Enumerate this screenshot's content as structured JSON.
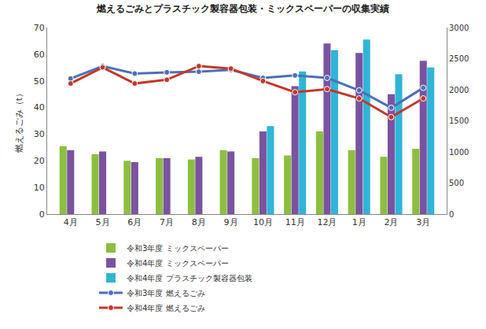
{
  "chart_data": {
    "type": "bar",
    "title": "燃えるごみとプラスチック製容器包装・ミックスペーパーの収集実績",
    "y_label": "燃えるごみ（t）",
    "categories": [
      "4月",
      "5月",
      "6月",
      "7月",
      "8月",
      "9月",
      "10月",
      "11月",
      "12月",
      "1月",
      "2月",
      "3月"
    ],
    "series": [
      {
        "name": "令和3年度 ミックスペーパー",
        "type": "bar",
        "axis": "y",
        "color": "#8cbf3f",
        "values": [
          25.5,
          22.5,
          20,
          21,
          20.5,
          24,
          21,
          22,
          31,
          24,
          21.5,
          24.5
        ]
      },
      {
        "name": "令和4年度 ミックスペーパー",
        "type": "bar",
        "axis": "y",
        "color": "#7b52a0",
        "values": [
          24,
          23.5,
          19.5,
          21,
          21.5,
          23.5,
          31,
          48,
          64,
          60.5,
          45,
          57.5
        ]
      },
      {
        "name": "令和4年度 プラスチック製容器包装",
        "type": "bar",
        "axis": "y",
        "color": "#2fb5d6",
        "values": [
          null,
          null,
          null,
          null,
          null,
          null,
          33,
          53.5,
          61.5,
          65.5,
          52.5,
          55
        ]
      },
      {
        "name": "令和3年度 燃えるごみ",
        "type": "line",
        "axis": "y2",
        "color": "#4f6fb5",
        "marker": "circle",
        "line_style": "solid",
        "values": [
          2180,
          2380,
          2260,
          2280,
          2290,
          2320,
          2190,
          2230,
          2190,
          1990,
          1710,
          2030
        ]
      },
      {
        "name": "令和4年度 燃えるごみ",
        "type": "line",
        "axis": "y2",
        "color": "#c0392b",
        "marker": "circle",
        "line_style": "solid",
        "values": [
          2100,
          2360,
          2100,
          2160,
          2380,
          2340,
          2140,
          1960,
          2010,
          1860,
          1560,
          1860
        ]
      }
    ],
    "ylim": [
      0,
      70
    ],
    "yticks": [
      0,
      10,
      20,
      30,
      40,
      50,
      60,
      70
    ],
    "y2lim": [
      0,
      3000
    ],
    "y2ticks": [
      0,
      500,
      1000,
      1500,
      2000,
      2500,
      3000
    ],
    "grid": false,
    "legend": "bottom"
  }
}
